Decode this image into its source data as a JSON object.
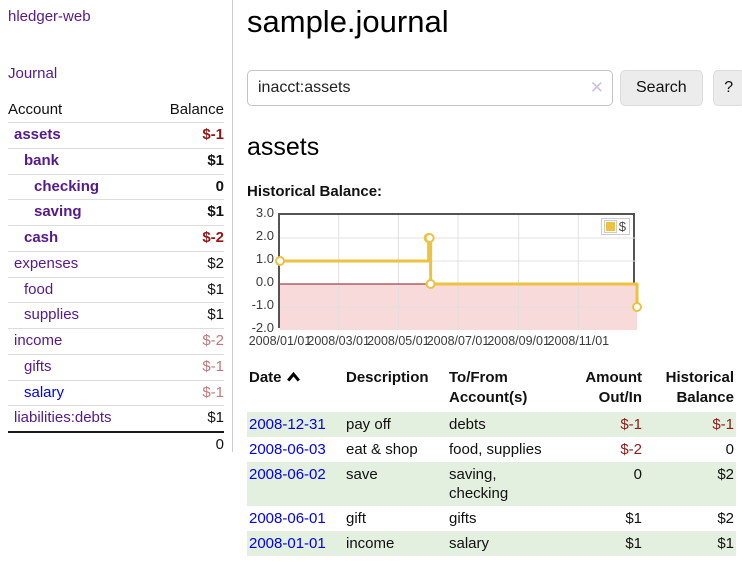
{
  "app": {
    "brand": "hledger-web"
  },
  "nav": {
    "journal": "Journal"
  },
  "sidebar": {
    "columns": {
      "account": "Account",
      "balance": "Balance"
    },
    "accounts": [
      {
        "name": "assets",
        "depth": 1,
        "bold": true,
        "balance": "$-1",
        "balance_style": "neg-strong",
        "link_style": "visited"
      },
      {
        "name": "bank",
        "depth": 2,
        "bold": true,
        "balance": "$1",
        "balance_style": "pos",
        "link_style": "visited"
      },
      {
        "name": "checking",
        "depth": 3,
        "bold": true,
        "balance": "0",
        "balance_style": "pos",
        "link_style": "visited"
      },
      {
        "name": "saving",
        "depth": 3,
        "bold": true,
        "balance": "$1",
        "balance_style": "pos",
        "link_style": "visited"
      },
      {
        "name": "cash",
        "depth": 2,
        "bold": true,
        "balance": "$-2",
        "balance_style": "neg-strong",
        "link_style": "visited"
      },
      {
        "name": "expenses",
        "depth": 1,
        "bold": false,
        "balance": "$2",
        "balance_style": "pos",
        "link_style": "visited"
      },
      {
        "name": "food",
        "depth": 2,
        "bold": false,
        "balance": "$1",
        "balance_style": "pos",
        "link_style": "visited"
      },
      {
        "name": "supplies",
        "depth": 2,
        "bold": false,
        "balance": "$1",
        "balance_style": "pos",
        "link_style": "visited"
      },
      {
        "name": "income",
        "depth": 1,
        "bold": false,
        "balance": "$-2",
        "balance_style": "neg-faded",
        "link_style": "visited"
      },
      {
        "name": "gifts",
        "depth": 2,
        "bold": false,
        "balance": "$-1",
        "balance_style": "neg-faded",
        "link_style": "visited"
      },
      {
        "name": "salary",
        "depth": 2,
        "bold": false,
        "balance": "$-1",
        "balance_style": "neg-faded",
        "link_style": "unvisited"
      },
      {
        "name": "liabilities:debts",
        "depth": 1,
        "bold": false,
        "balance": "$1",
        "balance_style": "pos",
        "link_style": "visited"
      }
    ],
    "total": "0"
  },
  "header": {
    "title": "sample.journal"
  },
  "search": {
    "value": "inacct:assets",
    "clear_icon": "✕",
    "button_label": "Search",
    "help_label": "?"
  },
  "account_page": {
    "heading": "assets",
    "chart_label": "Historical Balance:"
  },
  "chart_data": {
    "type": "line",
    "title": "Historical Balance:",
    "x_start": "2008-01-01",
    "x_end": "2008-12-31",
    "ylim": [
      -2,
      3
    ],
    "yticks": [
      "3.0",
      "2.0",
      "1.0",
      "0.0",
      "-1.0",
      "-2.0"
    ],
    "xticks": [
      {
        "date": "2008-01-01",
        "label": "2008/01/01"
      },
      {
        "date": "2008-03-01",
        "label": "2008/03/01"
      },
      {
        "date": "2008-05-01",
        "label": "2008/05/01"
      },
      {
        "date": "2008-07-01",
        "label": "2008/07/01"
      },
      {
        "date": "2008-09-01",
        "label": "2008/09/01"
      },
      {
        "date": "2008-11-01",
        "label": "2008/11/01"
      }
    ],
    "series": [
      {
        "name": "$",
        "color": "#edc240",
        "marker_fill": "#ffffff",
        "step": true,
        "points": [
          {
            "date": "2008-01-01",
            "value": 1
          },
          {
            "date": "2008-06-01",
            "value": 2
          },
          {
            "date": "2008-06-02",
            "value": 2
          },
          {
            "date": "2008-06-03",
            "value": 0
          },
          {
            "date": "2008-12-31",
            "value": -1
          }
        ]
      }
    ],
    "legend": {
      "position": "top-right",
      "items": [
        {
          "label": "$",
          "color": "#edc240"
        }
      ]
    },
    "zero_line_color": "#8b1a1a",
    "negative_region_color": "#f9dada",
    "grid_color": "#e0e0e0",
    "border_color": "#545454",
    "grid": true
  },
  "register": {
    "headers": {
      "date": "Date",
      "description": "Description",
      "tofrom": "To/From Account(s)",
      "amount": "Amount Out/In",
      "balance": "Historical Balance"
    },
    "rows": [
      {
        "date": "2008-12-31",
        "description": "pay off",
        "tofrom": "debts",
        "amount": "$-1",
        "balance": "$-1",
        "amount_neg": true,
        "balance_neg": true
      },
      {
        "date": "2008-06-03",
        "description": "eat & shop",
        "tofrom": "food, supplies",
        "amount": "$-2",
        "balance": "0",
        "amount_neg": true,
        "balance_neg": false
      },
      {
        "date": "2008-06-02",
        "description": "save",
        "tofrom": "saving, checking",
        "amount": "0",
        "balance": "$2",
        "amount_neg": false,
        "balance_neg": false
      },
      {
        "date": "2008-06-01",
        "description": "gift",
        "tofrom": "gifts",
        "amount": "$1",
        "balance": "$2",
        "amount_neg": false,
        "balance_neg": false
      },
      {
        "date": "2008-01-01",
        "description": "income",
        "tofrom": "salary",
        "amount": "$1",
        "balance": "$1",
        "amount_neg": false,
        "balance_neg": false
      }
    ]
  }
}
